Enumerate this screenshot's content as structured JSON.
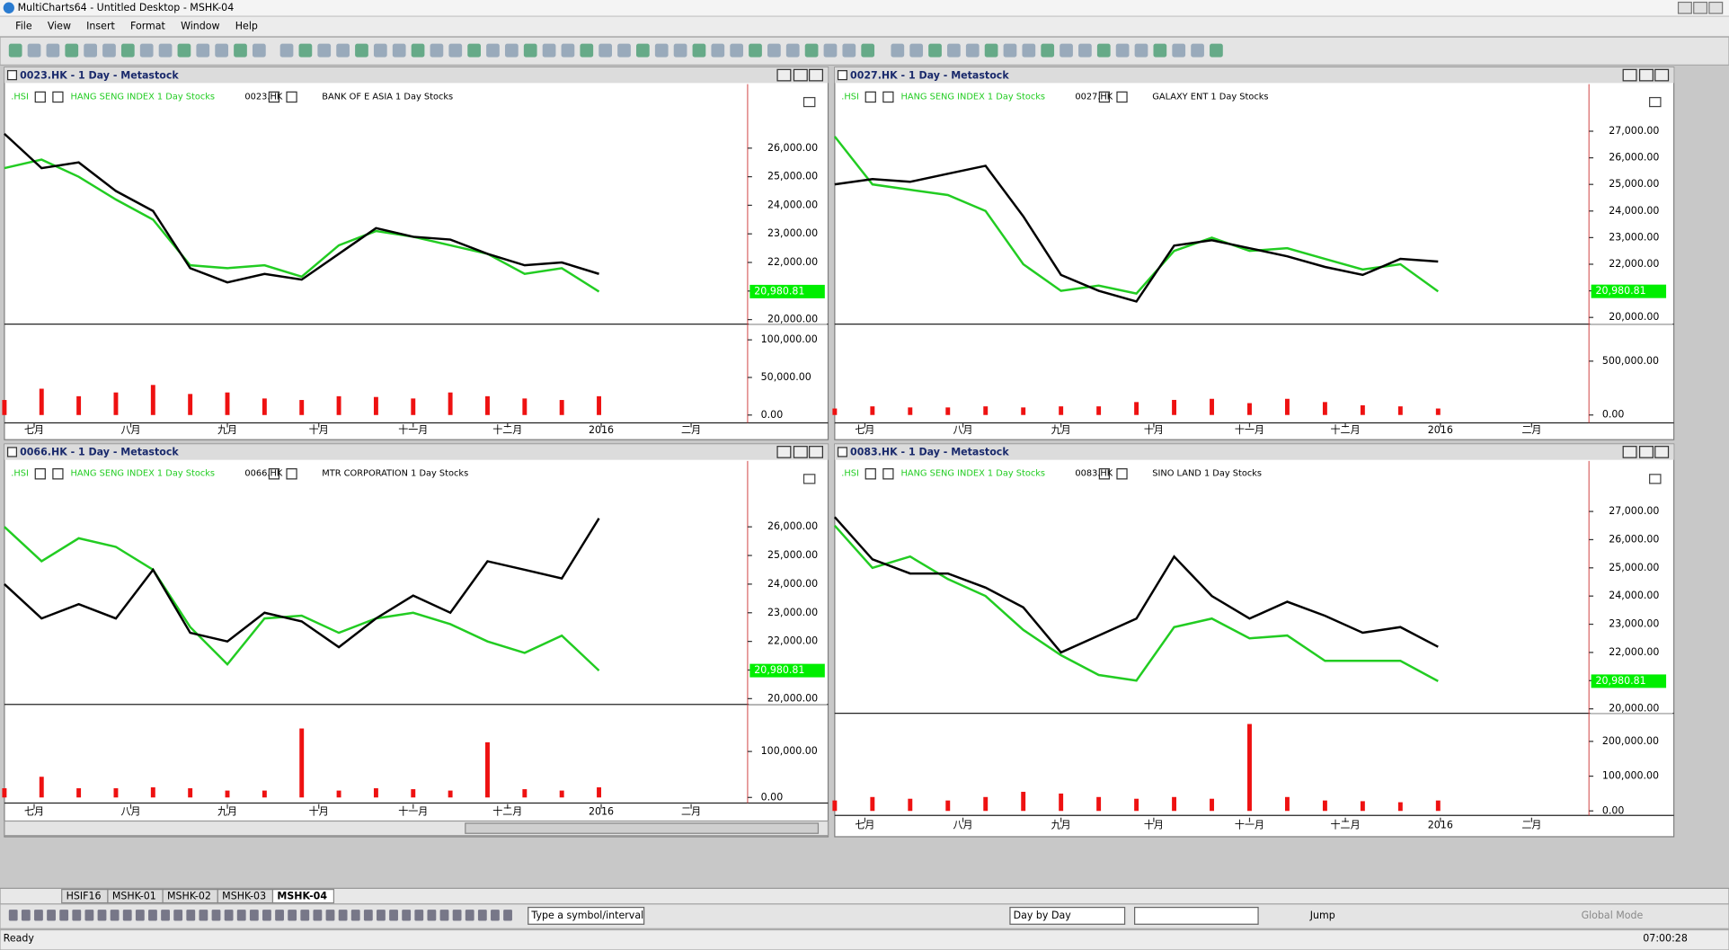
{
  "window": {
    "title": "MultiCharts64 - Untitled Desktop - MSHK-04"
  },
  "menu": [
    "File",
    "View",
    "Insert",
    "Format",
    "Window",
    "Help"
  ],
  "chart_data": [
    {
      "type": "line",
      "title": "0023.HK - 1 Day - Metastock",
      "legend": [
        ".HSI",
        "HANG SENG INDEX  1 Day  Stocks",
        "0023.HK",
        "BANK OF E ASIA  1 Day  Stocks"
      ],
      "x": [
        0,
        5,
        10,
        15,
        20,
        25,
        30,
        35,
        40,
        45,
        50,
        55,
        60,
        65,
        70,
        75,
        80
      ],
      "series": [
        {
          "name": ".HSI",
          "color": "#22cc22",
          "values": [
            25300,
            25600,
            25000,
            24200,
            23500,
            21900,
            21800,
            21900,
            21500,
            22600,
            23100,
            22900,
            22600,
            22300,
            21600,
            21800,
            20980
          ]
        },
        {
          "name": "0023.HK",
          "color": "#000000",
          "values": [
            26500,
            25300,
            25500,
            24500,
            23800,
            21800,
            21300,
            21600,
            21400,
            22300,
            23200,
            22900,
            22800,
            22300,
            21900,
            22000,
            21600
          ]
        }
      ],
      "ylim": [
        19880,
        28240
      ],
      "yticks": [
        {
          "value": 20000,
          "label": "20,000.00"
        },
        {
          "value": 21000,
          "label": "21,000.00"
        },
        {
          "value": 22000,
          "label": "22,000.00"
        },
        {
          "value": 23000,
          "label": "23,000.00"
        },
        {
          "value": 24000,
          "label": "24,000.00"
        },
        {
          "value": 25000,
          "label": "25,000.00"
        },
        {
          "value": 26000,
          "label": "26,000.00"
        }
      ],
      "last_label": {
        "value": 20980.81,
        "label": "20,980.81"
      },
      "volume": {
        "color": "#ee1111",
        "values": [
          20000,
          35000,
          25000,
          30000,
          40000,
          28000,
          30000,
          22000,
          20000,
          25000,
          24000,
          22000,
          30000,
          25000,
          22000,
          20000,
          25000
        ],
        "ylim": [
          -10400,
          119400
        ],
        "yticks": [
          {
            "value": 0,
            "label": "0.00"
          },
          {
            "value": 50000,
            "label": "50,000.00"
          },
          {
            "value": 100000,
            "label": "100,000.00"
          }
        ]
      },
      "xlim": [
        0,
        100
      ],
      "xticks": [
        {
          "value": 4,
          "label": "七月"
        },
        {
          "value": 17,
          "label": "八月"
        },
        {
          "value": 30,
          "label": "九月"
        },
        {
          "value": 42.3,
          "label": "十月"
        },
        {
          "value": 55,
          "label": "十一月"
        },
        {
          "value": 67.7,
          "label": "十二月"
        },
        {
          "value": 80.3,
          "label": "2016"
        },
        {
          "value": 92.4,
          "label": "二月"
        }
      ]
    },
    {
      "type": "line",
      "title": "0027.HK - 1 Day - Metastock",
      "legend": [
        ".HSI",
        "HANG SENG INDEX  1 Day  Stocks",
        "0027.HK",
        "GALAXY ENT  1 Day  Stocks"
      ],
      "x": [
        0,
        5,
        10,
        15,
        20,
        25,
        30,
        35,
        40,
        45,
        50,
        55,
        60,
        65,
        70,
        75,
        80
      ],
      "series": [
        {
          "name": ".HSI",
          "color": "#22cc22",
          "values": [
            26800,
            25000,
            24800,
            24600,
            24000,
            22000,
            21000,
            21200,
            20900,
            22500,
            23000,
            22500,
            22600,
            22200,
            21800,
            22000,
            20980
          ]
        },
        {
          "name": "0027.HK",
          "color": "#000000",
          "values": [
            25000,
            25200,
            25100,
            25400,
            25700,
            23800,
            21600,
            21000,
            20600,
            22700,
            22900,
            22600,
            22300,
            21900,
            21600,
            22200,
            22100
          ]
        }
      ],
      "ylim": [
        19790,
        28770
      ],
      "yticks": [
        {
          "value": 20000,
          "label": "20,000.00"
        },
        {
          "value": 21000,
          "label": "21,000.00"
        },
        {
          "value": 22000,
          "label": "22,000.00"
        },
        {
          "value": 23000,
          "label": "23,000.00"
        },
        {
          "value": 24000,
          "label": "24,000.00"
        },
        {
          "value": 25000,
          "label": "25,000.00"
        },
        {
          "value": 26000,
          "label": "26,000.00"
        },
        {
          "value": 27000,
          "label": "27,000.00"
        }
      ],
      "last_label": {
        "value": 20980.81,
        "label": "20,980.81"
      },
      "volume": {
        "color": "#ee1111",
        "values": [
          60000,
          80000,
          70000,
          70000,
          80000,
          70000,
          80000,
          80000,
          120000,
          140000,
          150000,
          110000,
          150000,
          120000,
          90000,
          80000,
          60000
        ],
        "ylim": [
          -73000,
          833000
        ],
        "yticks": [
          {
            "value": 0,
            "label": "0.00"
          },
          {
            "value": 500000,
            "label": "500,000.00"
          }
        ]
      },
      "xlim": [
        0,
        100
      ],
      "xticks": [
        {
          "value": 4,
          "label": "七月"
        },
        {
          "value": 17,
          "label": "八月"
        },
        {
          "value": 30,
          "label": "九月"
        },
        {
          "value": 42.3,
          "label": "十月"
        },
        {
          "value": 55,
          "label": "十一月"
        },
        {
          "value": 67.7,
          "label": "十二月"
        },
        {
          "value": 80.3,
          "label": "2016"
        },
        {
          "value": 92.4,
          "label": "二月"
        }
      ]
    },
    {
      "type": "line",
      "title": "0066.HK - 1 Day - Metastock",
      "legend": [
        ".HSI",
        "HANG SENG INDEX  1 Day  Stocks",
        "0066.HK",
        "MTR CORPORATION  1 Day  Stocks"
      ],
      "x": [
        0,
        5,
        10,
        15,
        20,
        25,
        30,
        35,
        40,
        45,
        50,
        55,
        60,
        65,
        70,
        75,
        80
      ],
      "series": [
        {
          "name": ".HSI",
          "color": "#22cc22",
          "values": [
            26000,
            24800,
            25600,
            25300,
            24500,
            22500,
            21200,
            22800,
            22900,
            22300,
            22800,
            23000,
            22600,
            22000,
            21600,
            22200,
            20980
          ]
        },
        {
          "name": "0066.HK",
          "color": "#000000",
          "values": [
            24000,
            22800,
            23300,
            22800,
            24500,
            22300,
            22000,
            23000,
            22700,
            21800,
            22800,
            23600,
            23000,
            24800,
            24500,
            24200,
            26300
          ]
        }
      ],
      "ylim": [
        19840,
        28300
      ],
      "yticks": [
        {
          "value": 20000,
          "label": "20,000.00"
        },
        {
          "value": 21000,
          "label": "21,000.00"
        },
        {
          "value": 22000,
          "label": "22,000.00"
        },
        {
          "value": 23000,
          "label": "23,000.00"
        },
        {
          "value": 24000,
          "label": "24,000.00"
        },
        {
          "value": 25000,
          "label": "25,000.00"
        },
        {
          "value": 26000,
          "label": "26,000.00"
        }
      ],
      "last_label": {
        "value": 20980.81,
        "label": "20,980.81"
      },
      "volume": {
        "color": "#ee1111",
        "values": [
          20000,
          45000,
          20000,
          20000,
          22000,
          20000,
          15000,
          15000,
          150000,
          15000,
          20000,
          18000,
          15000,
          120000,
          18000,
          15000,
          22000
        ],
        "ylim": [
          -12200,
          200000
        ],
        "yticks": [
          {
            "value": 0,
            "label": "0.00"
          },
          {
            "value": 100000,
            "label": "100,000.00"
          }
        ]
      },
      "xlim": [
        0,
        100
      ],
      "xticks": [
        {
          "value": 4,
          "label": "七月"
        },
        {
          "value": 17,
          "label": "八月"
        },
        {
          "value": 30,
          "label": "九月"
        },
        {
          "value": 42.3,
          "label": "十月"
        },
        {
          "value": 55,
          "label": "十一月"
        },
        {
          "value": 67.7,
          "label": "十二月"
        },
        {
          "value": 80.3,
          "label": "2016"
        },
        {
          "value": 92.4,
          "label": "二月"
        }
      ]
    },
    {
      "type": "line",
      "title": "0083.HK - 1 Day - Metastock",
      "legend": [
        ".HSI",
        "HANG SENG INDEX  1 Day  Stocks",
        "0083.HK",
        "SINO LAND  1 Day  Stocks"
      ],
      "x": [
        0,
        5,
        10,
        15,
        20,
        25,
        30,
        35,
        40,
        45,
        50,
        55,
        60,
        65,
        70,
        75,
        80
      ],
      "series": [
        {
          "name": ".HSI",
          "color": "#22cc22",
          "values": [
            26500,
            25000,
            25400,
            24600,
            24000,
            22800,
            21900,
            21200,
            21000,
            22900,
            23200,
            22500,
            22600,
            21700,
            21700,
            21700,
            20980
          ]
        },
        {
          "name": "0083.HK",
          "color": "#000000",
          "values": [
            26800,
            25300,
            24800,
            24800,
            24300,
            23600,
            22000,
            22600,
            23200,
            25400,
            24000,
            23200,
            23800,
            23300,
            22700,
            22900,
            22200
          ]
        }
      ],
      "ylim": [
        19880,
        28790
      ],
      "yticks": [
        {
          "value": 20000,
          "label": "20,000.00"
        },
        {
          "value": 21000,
          "label": "21,000.00"
        },
        {
          "value": 22000,
          "label": "22,000.00"
        },
        {
          "value": 23000,
          "label": "23,000.00"
        },
        {
          "value": 24000,
          "label": "24,000.00"
        },
        {
          "value": 25000,
          "label": "25,000.00"
        },
        {
          "value": 26000,
          "label": "26,000.00"
        },
        {
          "value": 27000,
          "label": "27,000.00"
        }
      ],
      "last_label": {
        "value": 20980.81,
        "label": "20,980.81"
      },
      "volume": {
        "color": "#ee1111",
        "values": [
          30000,
          40000,
          35000,
          30000,
          40000,
          55000,
          50000,
          40000,
          35000,
          40000,
          35000,
          250000,
          40000,
          30000,
          28000,
          25000,
          30000
        ],
        "ylim": [
          -12900,
          277400
        ],
        "yticks": [
          {
            "value": 0,
            "label": "0.00"
          },
          {
            "value": 100000,
            "label": "100,000.00"
          },
          {
            "value": 200000,
            "label": "200,000.00"
          }
        ]
      },
      "xlim": [
        0,
        100
      ],
      "xticks": [
        {
          "value": 4,
          "label": "七月"
        },
        {
          "value": 17,
          "label": "八月"
        },
        {
          "value": 30,
          "label": "九月"
        },
        {
          "value": 42.3,
          "label": "十月"
        },
        {
          "value": 55,
          "label": "十一月"
        },
        {
          "value": 67.7,
          "label": "十二月"
        },
        {
          "value": 80.3,
          "label": "2016"
        },
        {
          "value": 92.4,
          "label": "二月"
        }
      ]
    }
  ],
  "tabs": [
    "HSIF16",
    "MSHK-01",
    "MSHK-02",
    "MSHK-03",
    "MSHK-04"
  ],
  "toolbar": {
    "symbol_box": "Type a symbol/interval",
    "interval_box": "Day by Day",
    "jump": "Jump",
    "global_mode": "Global Mode"
  },
  "status": {
    "left": "Ready",
    "time": "07:00:28"
  }
}
